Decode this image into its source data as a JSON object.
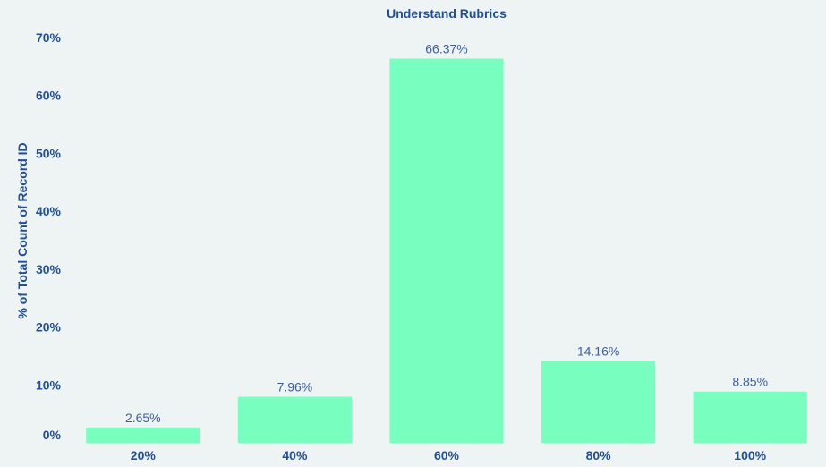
{
  "chart_data": {
    "type": "bar",
    "title": "Understand Rubrics",
    "xlabel": "",
    "ylabel": "% of Total Count of Record ID",
    "categories": [
      "20%",
      "40%",
      "60%",
      "80%",
      "100%"
    ],
    "values": [
      2.65,
      7.96,
      66.37,
      14.16,
      8.85
    ],
    "value_labels": [
      "2.65%",
      "7.96%",
      "66.37%",
      "14.16%",
      "8.85%"
    ],
    "ylim": [
      0,
      70
    ],
    "yticks": [
      0,
      10,
      20,
      30,
      40,
      50,
      60,
      70
    ],
    "ytick_labels": [
      "0%",
      "10%",
      "20%",
      "30%",
      "40%",
      "50%",
      "60%",
      "70%"
    ],
    "grid": false,
    "legend": "none",
    "colors": {
      "bar": "#78ffc0",
      "text": "#1f4e9a",
      "data_label": "#3a5f9e",
      "background": "#eef4f4"
    }
  }
}
